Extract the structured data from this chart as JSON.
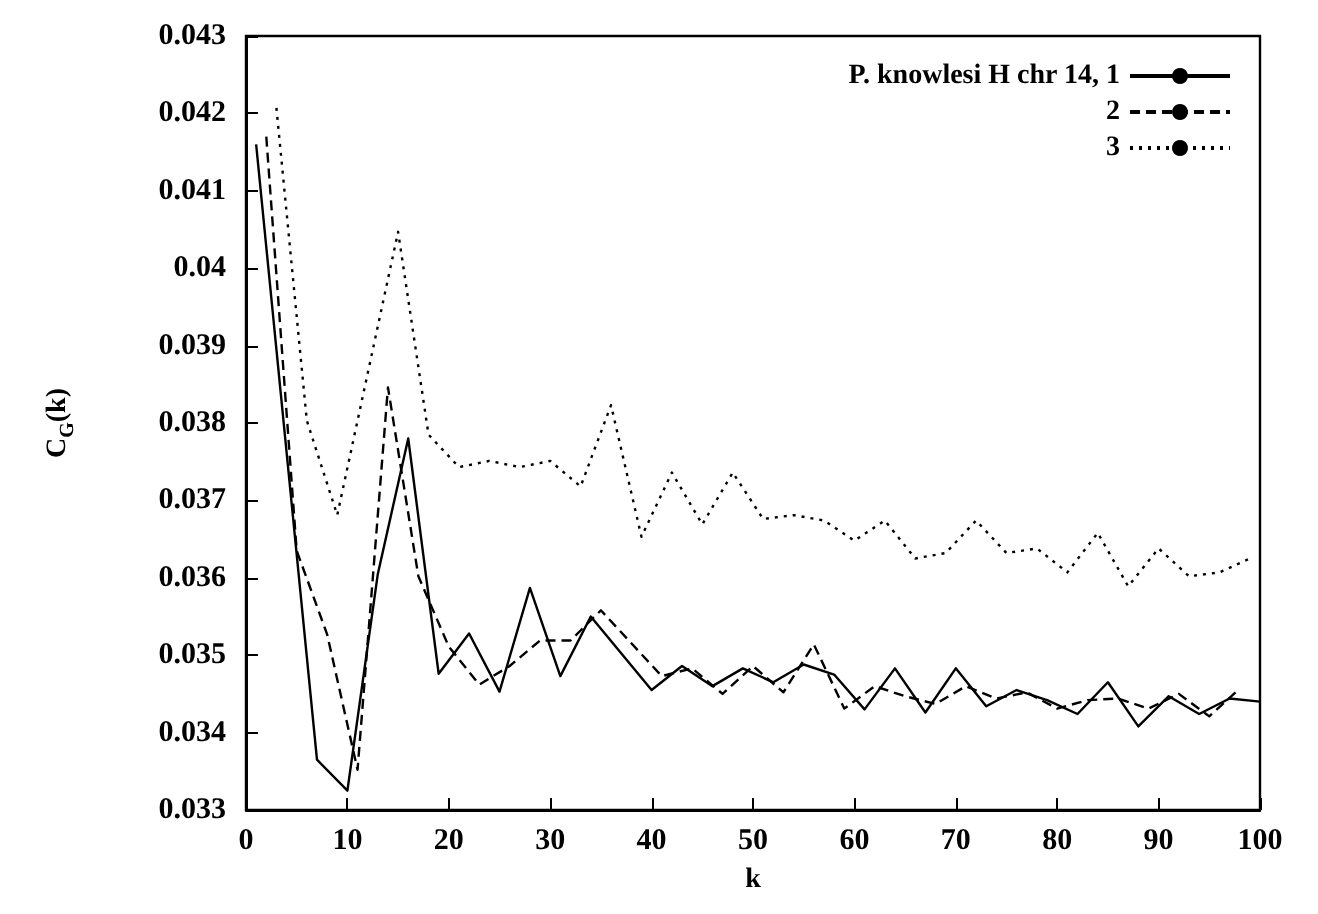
{
  "chart_data": {
    "type": "line",
    "xlabel": "k",
    "ylabel": "C$_{G}$(k)",
    "xlim": [
      0,
      100
    ],
    "xticks": [
      0,
      10,
      20,
      30,
      40,
      50,
      60,
      70,
      80,
      90,
      100
    ],
    "ylim": [
      0.033,
      0.043
    ],
    "yticks": [
      0.033,
      0.034,
      0.035,
      0.036,
      0.037,
      0.038,
      0.039,
      0.04,
      0.041,
      0.042,
      0.043
    ],
    "grid": false,
    "legend": "top right",
    "marker": "none",
    "series": [
      {
        "name": "P. knowlesi H chr 14, 1",
        "color": "#000000",
        "line_style": "solid",
        "x": [
          1,
          7,
          10,
          13,
          16,
          19,
          22,
          25,
          28,
          31,
          34,
          40,
          43,
          46,
          49,
          52,
          55,
          58,
          61,
          64,
          67,
          70,
          73,
          76,
          79,
          82,
          85,
          88,
          91,
          94,
          97,
          100
        ],
        "values": [
          0.0416,
          0.03365,
          0.03325,
          0.03605,
          0.0378,
          0.03476,
          0.03528,
          0.03453,
          0.03587,
          0.03473,
          0.0355,
          0.03455,
          0.03486,
          0.0346,
          0.03483,
          0.03465,
          0.03488,
          0.03475,
          0.0343,
          0.03483,
          0.03426,
          0.03483,
          0.03434,
          0.03455,
          0.03442,
          0.03424,
          0.03465,
          0.03408,
          0.03447,
          0.03424,
          0.03444,
          0.0344
        ]
      },
      {
        "name": "2",
        "color": "#000000",
        "line_style": "dashed",
        "x": [
          2,
          5,
          8,
          11,
          14,
          17,
          20,
          23,
          26,
          29,
          32,
          35,
          41,
          44,
          47,
          50,
          53,
          56,
          59,
          62,
          65,
          68,
          71,
          74,
          77,
          80,
          83,
          86,
          89,
          92,
          95,
          98
        ],
        "values": [
          0.0417,
          0.03635,
          0.03527,
          0.03352,
          0.03846,
          0.03602,
          0.03511,
          0.03462,
          0.03486,
          0.03519,
          0.03519,
          0.03558,
          0.03473,
          0.03483,
          0.0345,
          0.03486,
          0.03452,
          0.03514,
          0.03431,
          0.0346,
          0.03447,
          0.03437,
          0.0346,
          0.03444,
          0.03452,
          0.03431,
          0.03442,
          0.03444,
          0.03431,
          0.0345,
          0.03421,
          0.03457
        ]
      },
      {
        "name": "3",
        "color": "#000000",
        "line_style": "dotted",
        "x": [
          3,
          6,
          9,
          15,
          18,
          21,
          24,
          27,
          30,
          33,
          36,
          39,
          42,
          45,
          48,
          51,
          54,
          57,
          60,
          63,
          66,
          69,
          72,
          75,
          78,
          81,
          84,
          87,
          90,
          93,
          96,
          99
        ],
        "values": [
          0.04207,
          0.03803,
          0.03681,
          0.04047,
          0.03785,
          0.03743,
          0.03751,
          0.03743,
          0.03751,
          0.03718,
          0.03823,
          0.03653,
          0.03736,
          0.03669,
          0.03736,
          0.03676,
          0.03681,
          0.03674,
          0.03648,
          0.03674,
          0.03625,
          0.03632,
          0.03674,
          0.03632,
          0.03638,
          0.03607,
          0.03658,
          0.03589,
          0.03638,
          0.03602,
          0.03607,
          0.03625
        ]
      }
    ]
  }
}
